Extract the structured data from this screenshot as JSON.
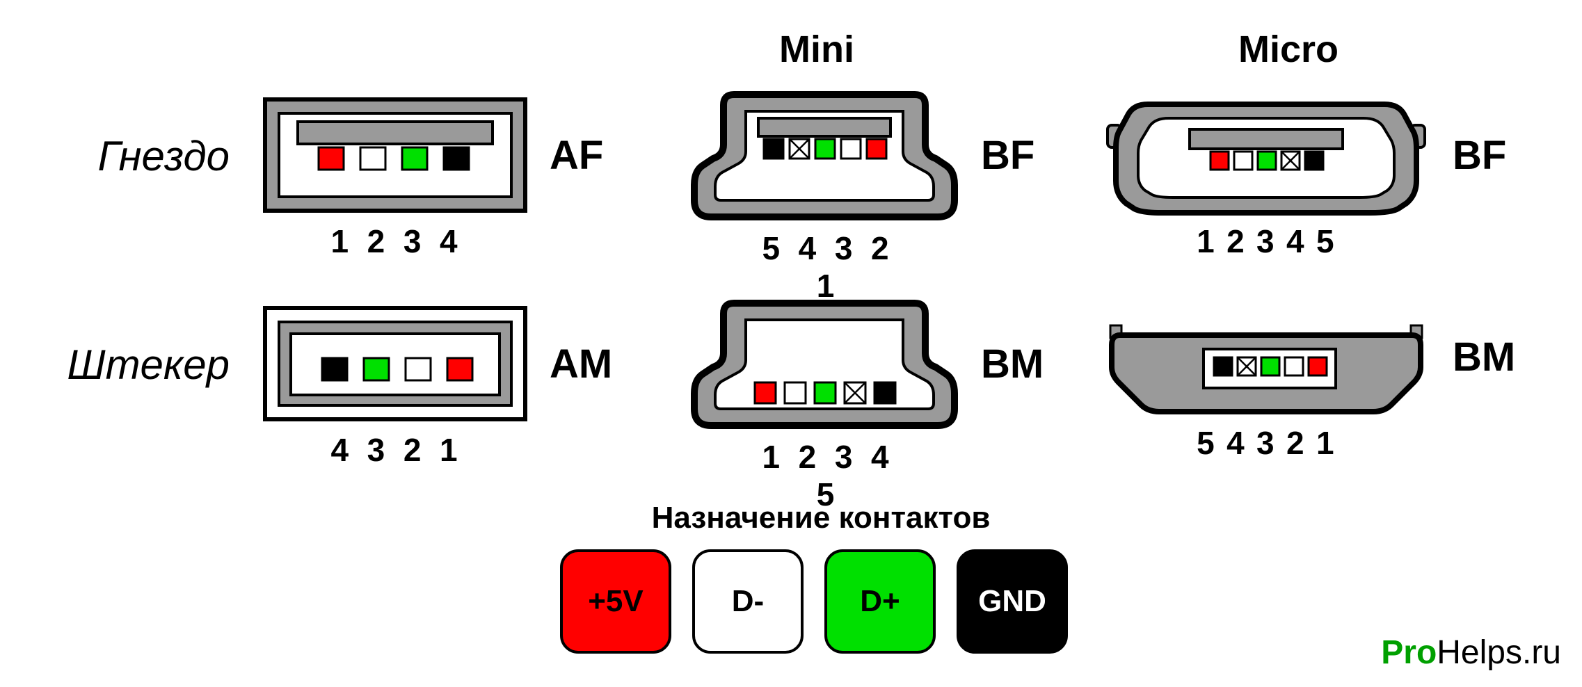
{
  "columns": {
    "mini": "Mini",
    "micro": "Micro"
  },
  "rows": {
    "socket": "Гнездо",
    "plug": "Штекер"
  },
  "connectors": {
    "af": {
      "label": "AF",
      "pins_text": "1 2 3 4",
      "pin_colors": [
        "#ff0000",
        "#ffffff",
        "#00e000",
        "#000000"
      ]
    },
    "am": {
      "label": "AM",
      "pins_text": "4 3 2 1",
      "pin_colors": [
        "#000000",
        "#00e000",
        "#ffffff",
        "#ff0000"
      ]
    },
    "mini_bf": {
      "label": "BF",
      "pins_text": "5 4 3 2 1",
      "pin_colors": [
        "#000000",
        "cross",
        "#00e000",
        "#ffffff",
        "#ff0000"
      ]
    },
    "mini_bm": {
      "label": "BM",
      "pins_text": "1 2 3 4 5",
      "pin_colors": [
        "#ff0000",
        "#ffffff",
        "#00e000",
        "cross",
        "#000000"
      ]
    },
    "micro_bf": {
      "label": "BF",
      "pins_text": "1 2 3 4 5",
      "pin_colors": [
        "#ff0000",
        "#ffffff",
        "#00e000",
        "cross",
        "#000000"
      ]
    },
    "micro_bm": {
      "label": "BM",
      "pins_text": "5 4 3 2 1",
      "pin_colors": [
        "#000000",
        "cross",
        "#00e000",
        "#ffffff",
        "#ff0000"
      ]
    }
  },
  "legend": {
    "title": "Назначение контактов",
    "items": [
      {
        "label": "+5V",
        "bg": "#ff0000",
        "fg": "#000000"
      },
      {
        "label": "D-",
        "bg": "#ffffff",
        "fg": "#000000"
      },
      {
        "label": "D+",
        "bg": "#00e000",
        "fg": "#000000"
      },
      {
        "label": "GND",
        "bg": "#000000",
        "fg": "#ffffff"
      }
    ]
  },
  "watermark": {
    "pro": "Pro",
    "helps": "Helps",
    "ru": ".ru"
  },
  "colors": {
    "shell": "#9a9a9a",
    "shell_stroke": "#000000",
    "inner_bg": "#ffffff",
    "tongue": "#9a9a9a"
  }
}
